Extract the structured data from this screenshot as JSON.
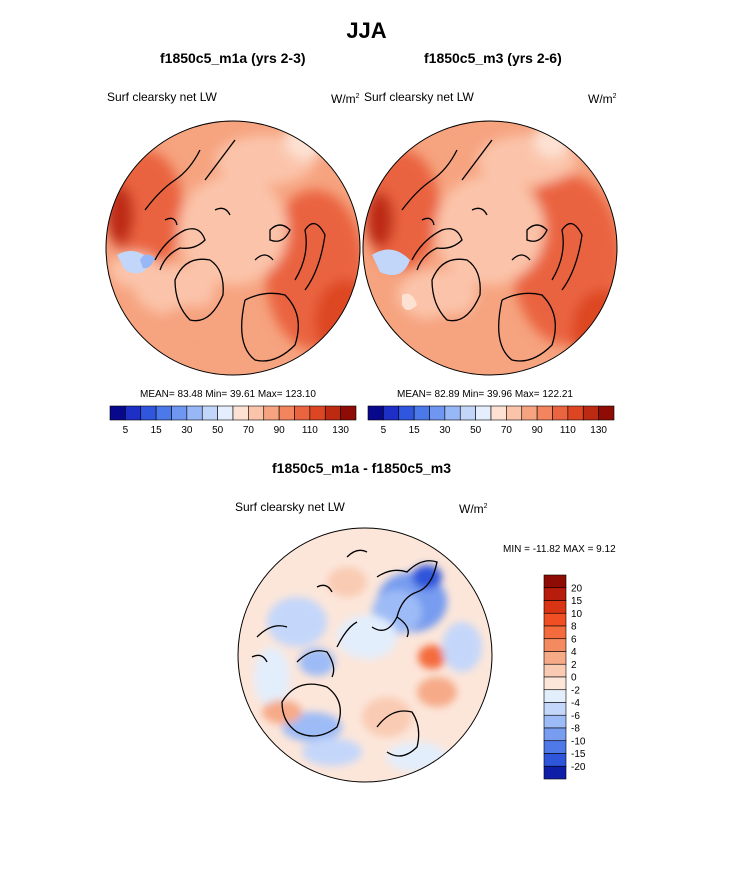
{
  "title": "JJA",
  "panels": [
    {
      "title": "f1850c5_m1a (yrs 2-3)",
      "variable": "Surf clearsky net LW",
      "units_base": "W/m",
      "units_exp": "2",
      "stats": "MEAN=  83.48  Min=  39.61  Max= 123.10"
    },
    {
      "title": "f1850c5_m3 (yrs 2-6)",
      "variable": "Surf clearsky net LW",
      "units_base": "W/m",
      "units_exp": "2",
      "stats": "MEAN=  82.89  Min=  39.96  Max= 122.21"
    }
  ],
  "diff_panel": {
    "title": "f1850c5_m1a - f1850c5_m3",
    "variable": "Surf clearsky net LW",
    "units_base": "W/m",
    "units_exp": "2",
    "minmax": "MIN = -11.82 MAX =   9.12"
  },
  "chart_data": [
    {
      "type": "heatmap",
      "subtype": "polar-stereographic map (Northern Hemisphere)",
      "title": "f1850c5_m1a (yrs 2-3)",
      "variable": "Surf clearsky net LW",
      "units": "W/m2",
      "stats": {
        "mean": 83.48,
        "min": 39.61,
        "max": 123.1
      },
      "colorbar": {
        "orientation": "horizontal",
        "tick_labels": [
          "5",
          "15",
          "30",
          "50",
          "70",
          "90",
          "110",
          "130"
        ],
        "colors": [
          "#08088c",
          "#1e2fc6",
          "#2f56dc",
          "#4c79ea",
          "#6f97f2",
          "#98b7f7",
          "#c2d6fa",
          "#e4eefc",
          "#fde2d4",
          "#fbc4aa",
          "#f6a37f",
          "#f2855d",
          "#ea6440",
          "#dd4622",
          "#bd2a12",
          "#8e0b06"
        ]
      }
    },
    {
      "type": "heatmap",
      "subtype": "polar-stereographic map (Northern Hemisphere)",
      "title": "f1850c5_m3 (yrs 2-6)",
      "variable": "Surf clearsky net LW",
      "units": "W/m2",
      "stats": {
        "mean": 82.89,
        "min": 39.96,
        "max": 122.21
      },
      "colorbar": {
        "orientation": "horizontal",
        "tick_labels": [
          "5",
          "15",
          "30",
          "50",
          "70",
          "90",
          "110",
          "130"
        ],
        "colors": [
          "#08088c",
          "#1e2fc6",
          "#2f56dc",
          "#4c79ea",
          "#6f97f2",
          "#98b7f7",
          "#c2d6fa",
          "#e4eefc",
          "#fde2d4",
          "#fbc4aa",
          "#f6a37f",
          "#f2855d",
          "#ea6440",
          "#dd4622",
          "#bd2a12",
          "#8e0b06"
        ]
      }
    },
    {
      "type": "heatmap",
      "subtype": "polar-stereographic difference map",
      "title": "f1850c5_m1a - f1850c5_m3",
      "variable": "Surf clearsky net LW",
      "units": "W/m2",
      "stats": {
        "min": -11.82,
        "max": 9.12
      },
      "colorbar": {
        "orientation": "vertical",
        "tick_labels": [
          "20",
          "15",
          "10",
          "8",
          "6",
          "4",
          "2",
          "0",
          "-2",
          "-4",
          "-6",
          "-8",
          "-10",
          "-15",
          "-20"
        ],
        "colors": [
          "#8e0b06",
          "#b81c0c",
          "#d93413",
          "#ef4f22",
          "#f46c3e",
          "#f38a60",
          "#f6aa88",
          "#f9cbb3",
          "#fce6da",
          "#e3eefc",
          "#c4d7fa",
          "#9dbbf6",
          "#779cf0",
          "#4f78e8",
          "#2e55da",
          "#0f1ea6"
        ]
      }
    }
  ]
}
